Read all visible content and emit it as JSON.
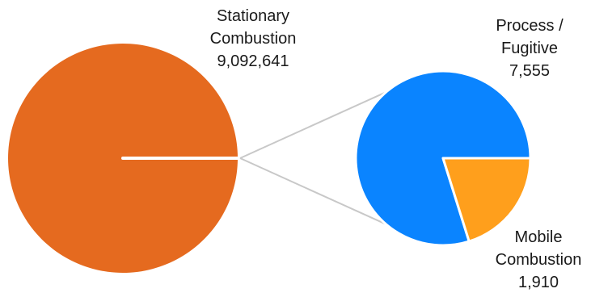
{
  "chart_data": {
    "type": "pie",
    "variant": "pie-of-pie",
    "colors": {
      "main": "#E56A1F",
      "secondary_a": "#0A84FF",
      "secondary_b": "#FF9F1C",
      "connector": "#C8C8C8",
      "separator": "#FFFFFF"
    },
    "main_pie": {
      "slices": [
        {
          "name_lines": [
            "Stationary",
            "Combustion"
          ],
          "value_label": "9,092,641",
          "value": 9092641
        },
        {
          "name_lines": [],
          "value_label": "",
          "value": 9465
        }
      ]
    },
    "secondary_pie": {
      "slices": [
        {
          "name_lines": [
            "Process /",
            "Fugitive"
          ],
          "value_label": "7,555",
          "value": 7555
        },
        {
          "name_lines": [
            "Mobile",
            "Combustion"
          ],
          "value_label": "1,910",
          "value": 1910
        }
      ]
    },
    "legend": "none",
    "title": ""
  }
}
